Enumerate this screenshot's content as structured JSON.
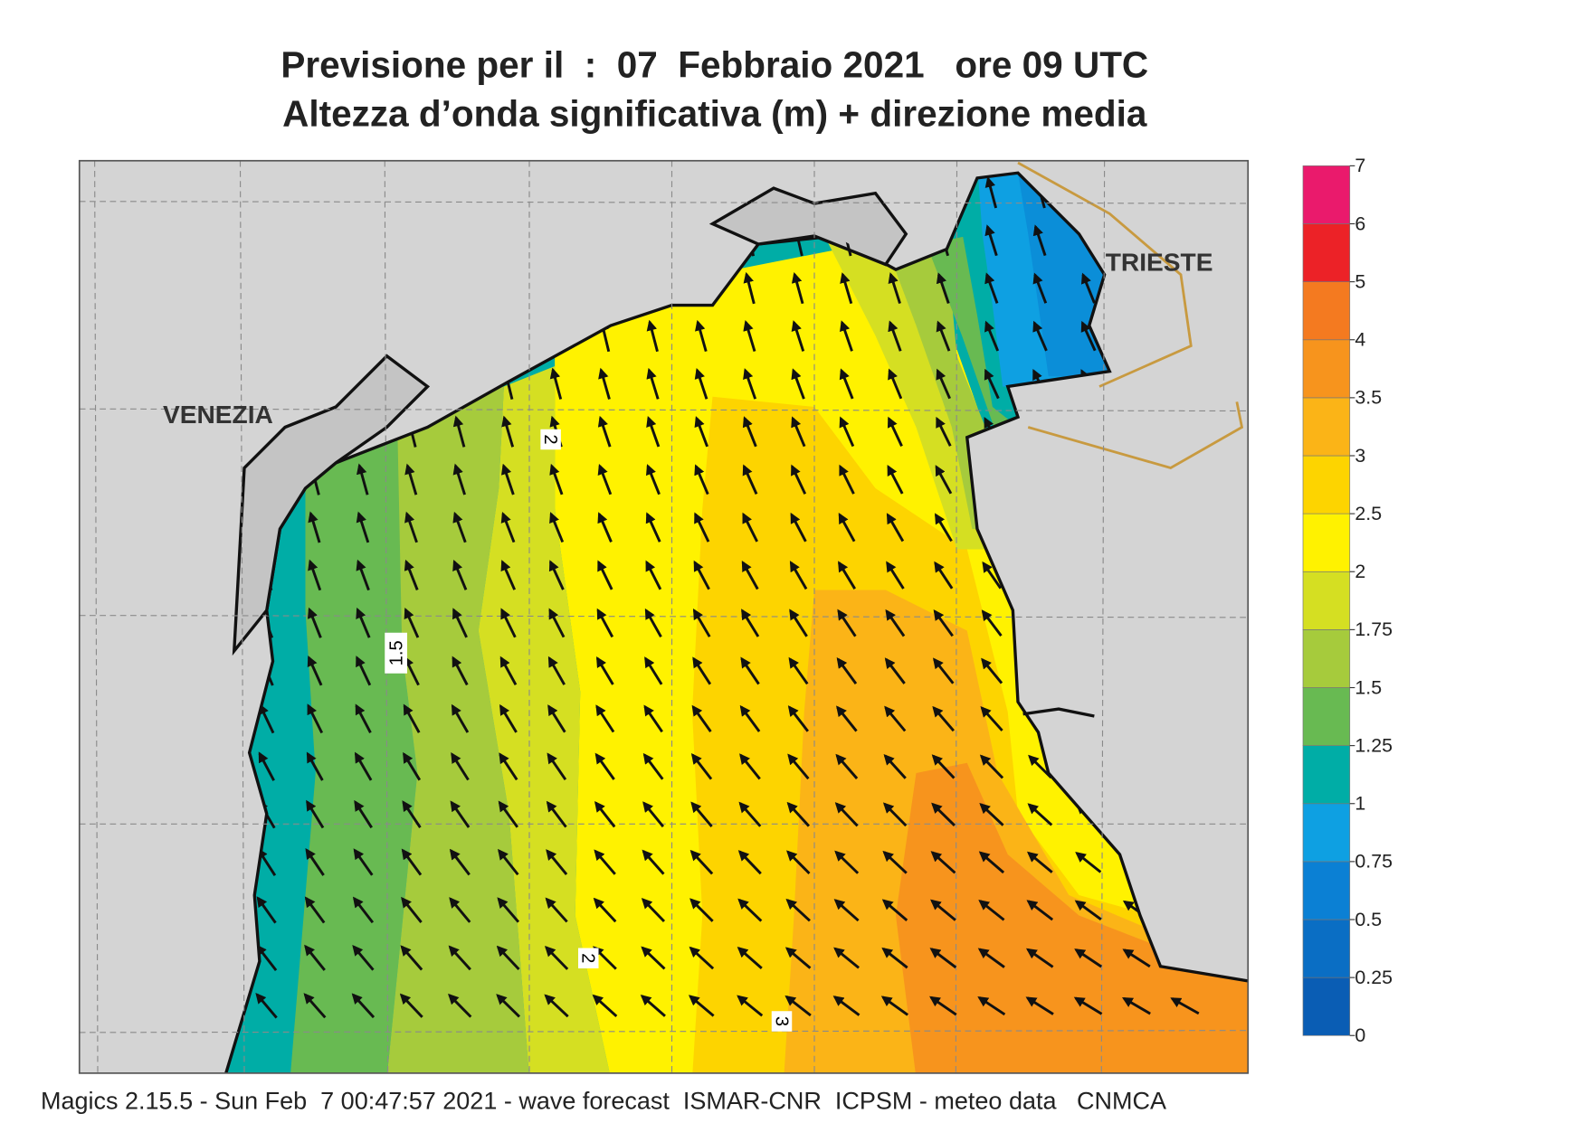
{
  "title": [
    "Previsione per il  :  07  Febbraio 2021   ore 09 UTC",
    "Altezza d’onda significativa (m) + direzione media"
  ],
  "places": [
    "VENEZIA",
    "TRIESTE"
  ],
  "contour_labels": [
    2,
    1.5,
    2,
    3
  ],
  "colorbar": {
    "ticks": [
      0,
      0.25,
      0.5,
      0.75,
      1,
      1.25,
      1.5,
      1.75,
      2,
      2.5,
      3,
      3.5,
      4,
      5,
      6,
      7
    ],
    "colors": [
      "#0a5db4",
      "#0a6ec4",
      "#0b80d4",
      "#0ea0e2",
      "#00ada6",
      "#68ba52",
      "#a6cb3c",
      "#d5df22",
      "#fff200",
      "#fdd400",
      "#fbb417",
      "#f7941d",
      "#f47a20",
      "#ec2227",
      "#ea1a6c"
    ]
  },
  "footer": "Magics 2.15.5 - Sun Feb  7 00:47:57 2021 - wave forecast  ISMAR-CNR  ICPSM - meteo data   CNMCA"
}
